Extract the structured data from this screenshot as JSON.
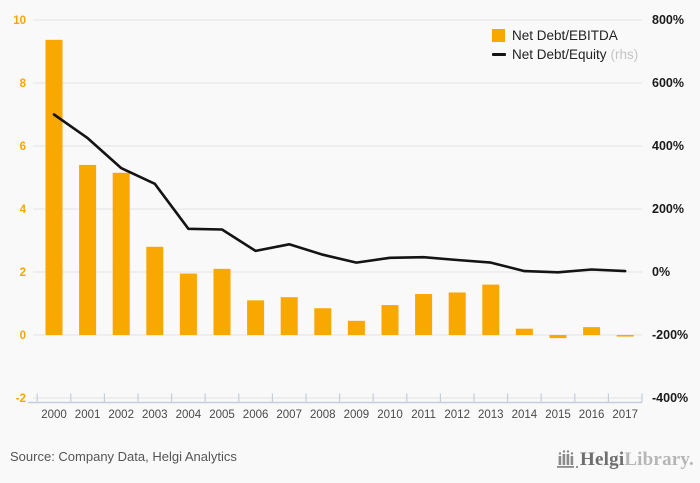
{
  "chart_data": {
    "type": "bar+line",
    "title": "",
    "categories": [
      "2000",
      "2001",
      "2002",
      "2003",
      "2004",
      "2005",
      "2006",
      "2007",
      "2008",
      "2009",
      "2010",
      "2011",
      "2012",
      "2013",
      "2014",
      "2015",
      "2016",
      "2017"
    ],
    "series": [
      {
        "name": "Net Debt/EBITDA",
        "type": "bar",
        "axis": "left",
        "color": "#F8A800",
        "values": [
          9.37,
          5.4,
          5.15,
          2.8,
          1.95,
          2.1,
          1.1,
          1.2,
          0.85,
          0.45,
          0.95,
          1.3,
          1.35,
          1.6,
          0.2,
          -0.1,
          0.25,
          -0.05
        ]
      },
      {
        "name": "Net Debt/Equity",
        "type": "line",
        "axis": "right",
        "unit": "%",
        "color": "#141414",
        "values": [
          500,
          425,
          330,
          280,
          137,
          135,
          67,
          88,
          55,
          30,
          45,
          47,
          38,
          30,
          3,
          -1,
          8,
          3
        ]
      }
    ],
    "left_axis": {
      "labels": [
        "10",
        "8",
        "6",
        "4",
        "2",
        "0",
        "-2"
      ],
      "range": [
        -2,
        10
      ],
      "label_color": "#F7A600"
    },
    "right_axis": {
      "labels": [
        "800%",
        "600%",
        "400%",
        "200%",
        "0%",
        "-200%",
        "-400%"
      ],
      "range": [
        -400,
        800
      ],
      "label_color": "#1B1B1B"
    },
    "grid": {
      "show": true,
      "color": "#E8E8E8"
    },
    "x_axis": {
      "color": "#C4CCDE",
      "label_color": "#4A4A4A"
    },
    "legend_position": "top-right"
  },
  "legend": {
    "bar_label": "Net Debt/EBITDA",
    "line_label": "Net Debt/Equity",
    "line_label_suffix": "(rhs)"
  },
  "footer": {
    "source": "Source: Company Data, Helgi Analytics",
    "logo_primary": "Helgi",
    "logo_secondary": "Library."
  }
}
